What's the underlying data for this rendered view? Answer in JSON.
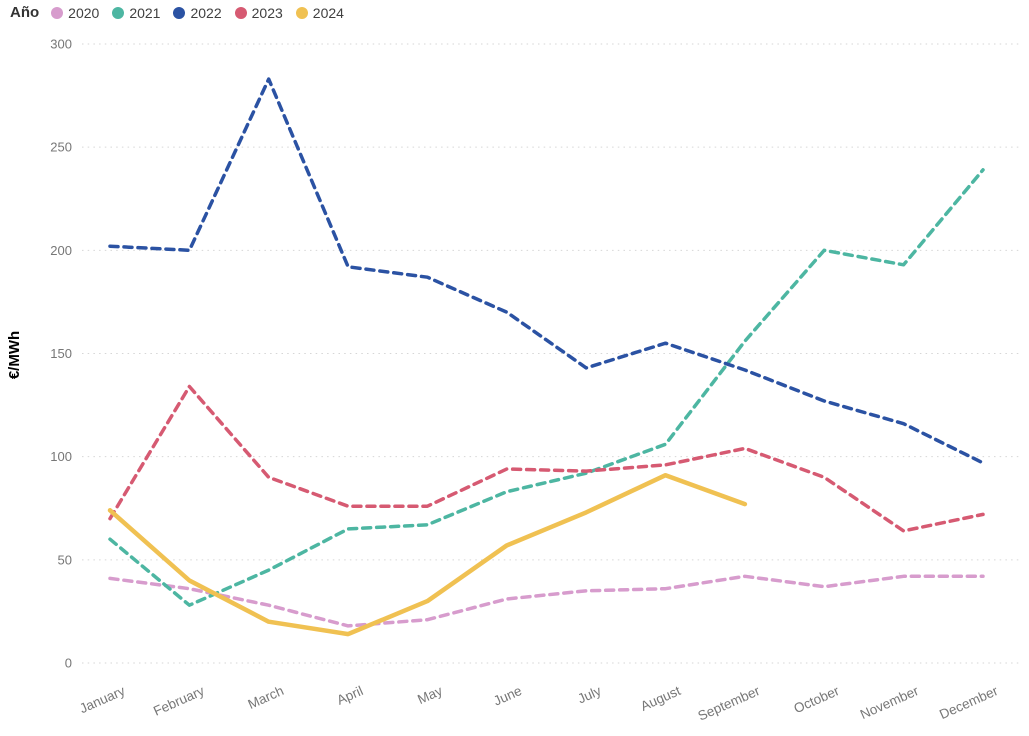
{
  "legend": {
    "title": "Año"
  },
  "y_axis": {
    "label": "€/MWh",
    "ticks": [
      0,
      50,
      100,
      150,
      200,
      250,
      300
    ]
  },
  "chart_data": {
    "type": "line",
    "title": "",
    "xlabel": "",
    "ylabel": "€/MWh",
    "ylim": [
      0,
      300
    ],
    "ytick_interval": 50,
    "grid": "horizontal-dotted",
    "legend_position": "top-left",
    "legend_title": "Año",
    "categories": [
      "January",
      "February",
      "March",
      "April",
      "May",
      "June",
      "July",
      "August",
      "September",
      "October",
      "November",
      "December"
    ],
    "series": [
      {
        "name": "2020",
        "color": "#d79ccd",
        "line_style": "dashed",
        "values": [
          41,
          36,
          28,
          18,
          21,
          31,
          35,
          36,
          42,
          37,
          42,
          42
        ]
      },
      {
        "name": "2021",
        "color": "#4db6a2",
        "line_style": "dashed",
        "values": [
          60,
          28,
          45,
          65,
          67,
          83,
          92,
          106,
          156,
          200,
          193,
          239
        ]
      },
      {
        "name": "2022",
        "color": "#2b52a3",
        "line_style": "dashed",
        "values": [
          202,
          200,
          283,
          192,
          187,
          170,
          143,
          155,
          142,
          127,
          116,
          97
        ]
      },
      {
        "name": "2023",
        "color": "#d65a72",
        "line_style": "dashed",
        "values": [
          70,
          134,
          90,
          76,
          76,
          94,
          93,
          96,
          104,
          90,
          64,
          72
        ]
      },
      {
        "name": "2024",
        "color": "#f0c152",
        "line_style": "solid",
        "values": [
          74,
          40,
          20,
          14,
          30,
          57,
          73,
          91,
          77,
          null,
          null,
          null
        ]
      }
    ]
  }
}
